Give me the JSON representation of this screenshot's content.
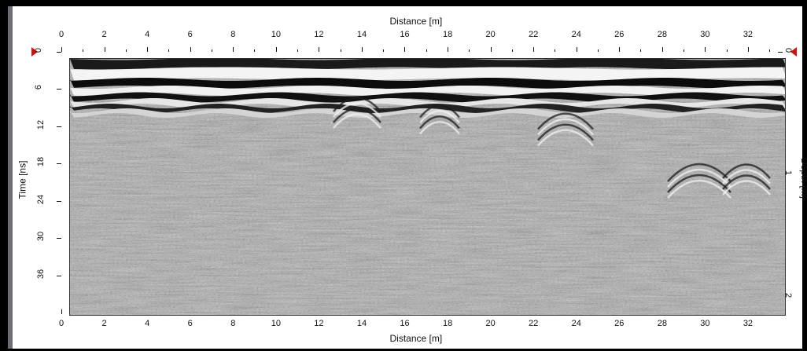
{
  "window": {
    "frame_color": "#000000",
    "left_edge_color": "#6f6f73"
  },
  "plot": {
    "x_axis_top_title": "Distance [m]",
    "x_axis_bottom_title": "Distance [m]",
    "y_axis_left_title": "Time [ns]",
    "y_axis_right_title": "Depth [m]",
    "distance_ticks": [
      "0",
      "2",
      "4",
      "6",
      "8",
      "10",
      "12",
      "14",
      "16",
      "18",
      "20",
      "22",
      "24",
      "26",
      "28",
      "30",
      "32"
    ],
    "time_ticks": [
      "0",
      "6",
      "12",
      "18",
      "24",
      "30",
      "36"
    ],
    "depth_ticks": [
      "0",
      "1",
      "2"
    ],
    "distance_range_m": [
      0,
      33.4
    ],
    "time_range_ns": [
      0,
      41.5
    ],
    "depth_range_m": [
      0,
      2.1
    ],
    "marker_color": "#cc1111",
    "marker_names": [
      "time-origin-marker",
      "depth-origin-marker"
    ]
  }
}
